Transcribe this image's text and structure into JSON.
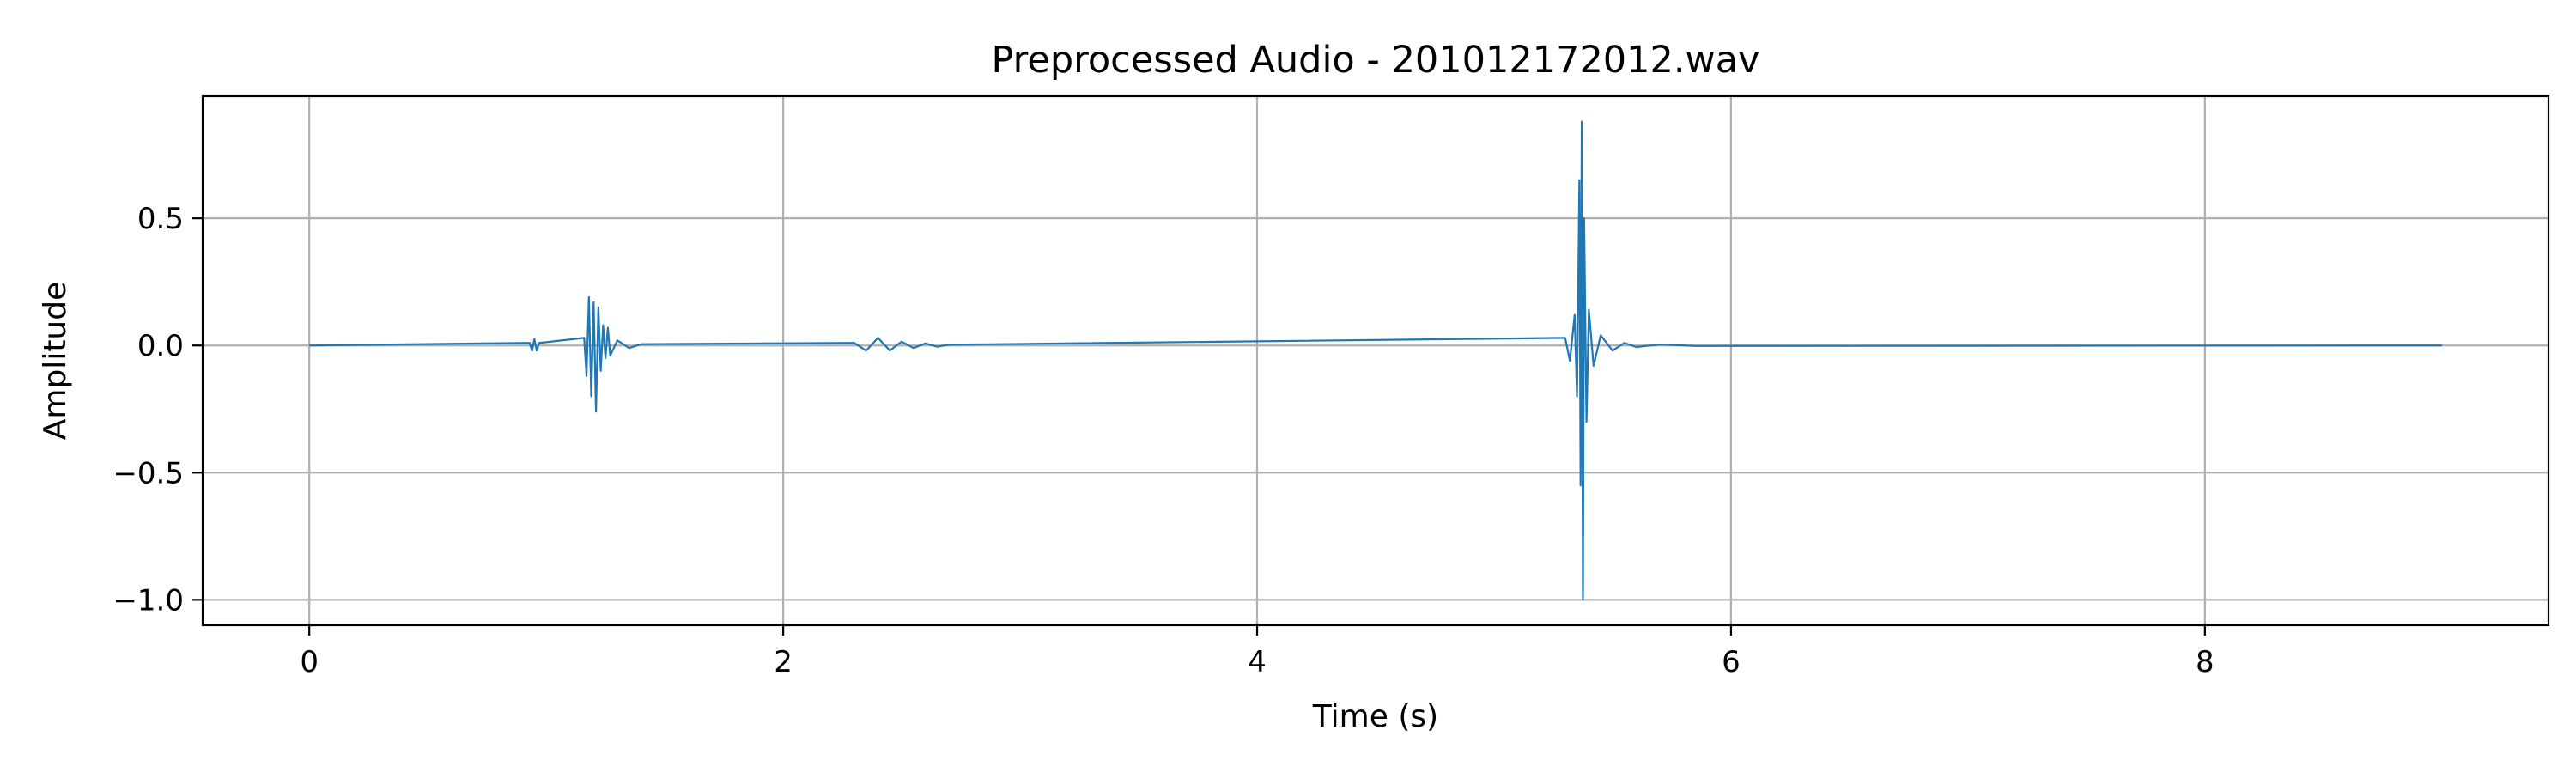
{
  "chart_data": {
    "type": "line",
    "title": "Preprocessed Audio - 201012172012.wav",
    "xlabel": "Time (s)",
    "ylabel": "Amplitude",
    "xlim": [
      -0.45,
      9.45
    ],
    "ylim": [
      -1.1,
      0.98
    ],
    "xticks": [
      0,
      2,
      4,
      6,
      8
    ],
    "xtick_labels": [
      "0",
      "2",
      "4",
      "6",
      "8"
    ],
    "yticks": [
      0.5,
      0.0,
      -0.5,
      -1.0
    ],
    "ytick_labels": [
      "0.5",
      "0.0",
      "−0.5",
      "−1.0"
    ],
    "grid": true,
    "series": [
      {
        "color": "#1f77b4",
        "duration": 9.0,
        "x": [
          0.0,
          0.93,
          0.94,
          0.95,
          0.96,
          0.97,
          1.16,
          1.17,
          1.18,
          1.19,
          1.2,
          1.21,
          1.22,
          1.23,
          1.24,
          1.25,
          1.26,
          1.27,
          1.3,
          1.35,
          1.4,
          2.3,
          2.35,
          2.4,
          2.45,
          2.5,
          2.55,
          2.6,
          2.65,
          2.7,
          5.3,
          5.32,
          5.34,
          5.35,
          5.36,
          5.365,
          5.37,
          5.375,
          5.38,
          5.39,
          5.4,
          5.42,
          5.45,
          5.5,
          5.55,
          5.6,
          5.7,
          5.85,
          9.0
        ],
        "y": [
          0.0,
          0.01,
          -0.02,
          0.025,
          -0.02,
          0.01,
          0.03,
          -0.12,
          0.19,
          -0.2,
          0.17,
          -0.26,
          0.15,
          -0.1,
          0.08,
          -0.05,
          0.07,
          -0.04,
          0.02,
          -0.01,
          0.005,
          0.01,
          -0.02,
          0.03,
          -0.02,
          0.015,
          -0.01,
          0.008,
          -0.005,
          0.003,
          0.03,
          -0.06,
          0.12,
          -0.2,
          0.65,
          -0.55,
          0.88,
          -1.0,
          0.5,
          -0.3,
          0.14,
          -0.08,
          0.04,
          -0.02,
          0.01,
          -0.006,
          0.004,
          -0.002,
          0.0
        ]
      }
    ]
  }
}
